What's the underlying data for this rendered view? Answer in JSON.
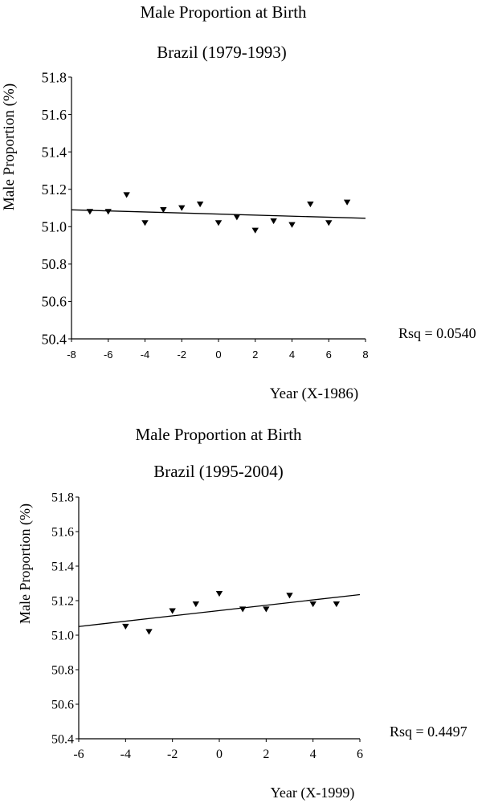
{
  "chart_data": [
    {
      "type": "scatter",
      "title": "Male Proportion at Birth",
      "subtitle": "Brazil (1979-1993)",
      "xlabel": "Year (X-1986)",
      "ylabel": "Male Proportion (%)",
      "xlim": [
        -8,
        8
      ],
      "ylim": [
        50.4,
        51.8
      ],
      "xticks": [
        -8,
        -6,
        -4,
        -2,
        0,
        2,
        4,
        6,
        8
      ],
      "yticks": [
        50.4,
        50.6,
        50.8,
        51.0,
        51.2,
        51.4,
        51.6,
        51.8
      ],
      "grid": false,
      "annotation": "Rsq = 0.0540",
      "points": {
        "x": [
          -7,
          -6,
          -5,
          -4,
          -3,
          -2,
          -1,
          0,
          1,
          2,
          3,
          4,
          5,
          6,
          7
        ],
        "y": [
          51.08,
          51.08,
          51.17,
          51.02,
          51.09,
          51.1,
          51.12,
          51.02,
          51.05,
          50.98,
          51.03,
          51.01,
          51.12,
          51.02,
          51.13
        ]
      },
      "fit_line": {
        "x": [
          -8,
          8
        ],
        "y": [
          51.09,
          51.045
        ]
      }
    },
    {
      "type": "scatter",
      "title": "Male Proportion at Birth",
      "subtitle": "Brazil (1995-2004)",
      "xlabel": "Year (X-1999)",
      "ylabel": "Male Proportion (%)",
      "xlim": [
        -6,
        6
      ],
      "ylim": [
        50.4,
        51.8
      ],
      "xticks": [
        -6,
        -4,
        -2,
        0,
        2,
        4,
        6
      ],
      "yticks": [
        50.4,
        50.6,
        50.8,
        51.0,
        51.2,
        51.4,
        51.6,
        51.8
      ],
      "grid": false,
      "annotation": "Rsq = 0.4497",
      "points": {
        "x": [
          -4,
          -3,
          -2,
          -1,
          0,
          1,
          2,
          3,
          4,
          5
        ],
        "y": [
          51.05,
          51.02,
          51.14,
          51.18,
          51.24,
          51.15,
          51.15,
          51.23,
          51.18,
          51.18
        ]
      },
      "fit_line": {
        "x": [
          -6,
          6
        ],
        "y": [
          51.05,
          51.235
        ]
      }
    }
  ]
}
